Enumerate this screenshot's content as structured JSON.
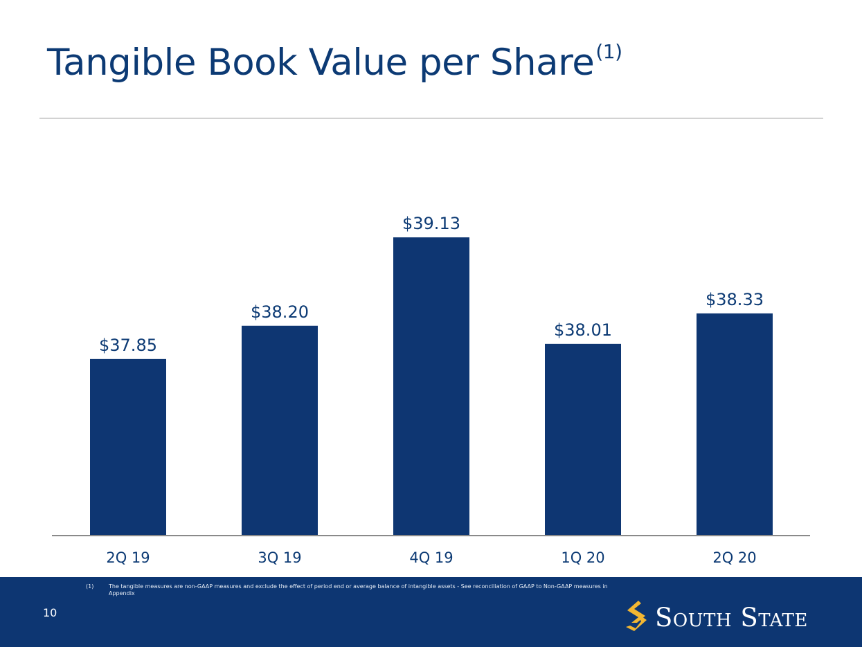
{
  "slide": {
    "title": "Tangible Book Value per Share",
    "title_superscript": "(1)",
    "page_number": "10"
  },
  "footnote": {
    "marker": "(1)",
    "text": "The tangible measures are non-GAAP measures and exclude the effect of period end or average balance of intangible assets - See reconciliation of GAAP to Non-GAAP measures in Appendix"
  },
  "logo": {
    "text": "South State"
  },
  "colors": {
    "bar": "#0e3672",
    "title": "#0c3a74",
    "footer": "#0d3672",
    "logo_accent": "#f2b632"
  },
  "chart_data": {
    "type": "bar",
    "title": "",
    "xlabel": "",
    "ylabel": "",
    "categories": [
      "2Q 19",
      "3Q 19",
      "4Q 19",
      "1Q 20",
      "2Q 20"
    ],
    "values": [
      37.85,
      38.2,
      39.13,
      38.01,
      38.33
    ],
    "data_labels": [
      "$37.85",
      "$38.20",
      "$39.13",
      "$38.01",
      "$38.33"
    ],
    "ylim": [
      36.0,
      40.0
    ],
    "grid": false,
    "legend": "none"
  }
}
